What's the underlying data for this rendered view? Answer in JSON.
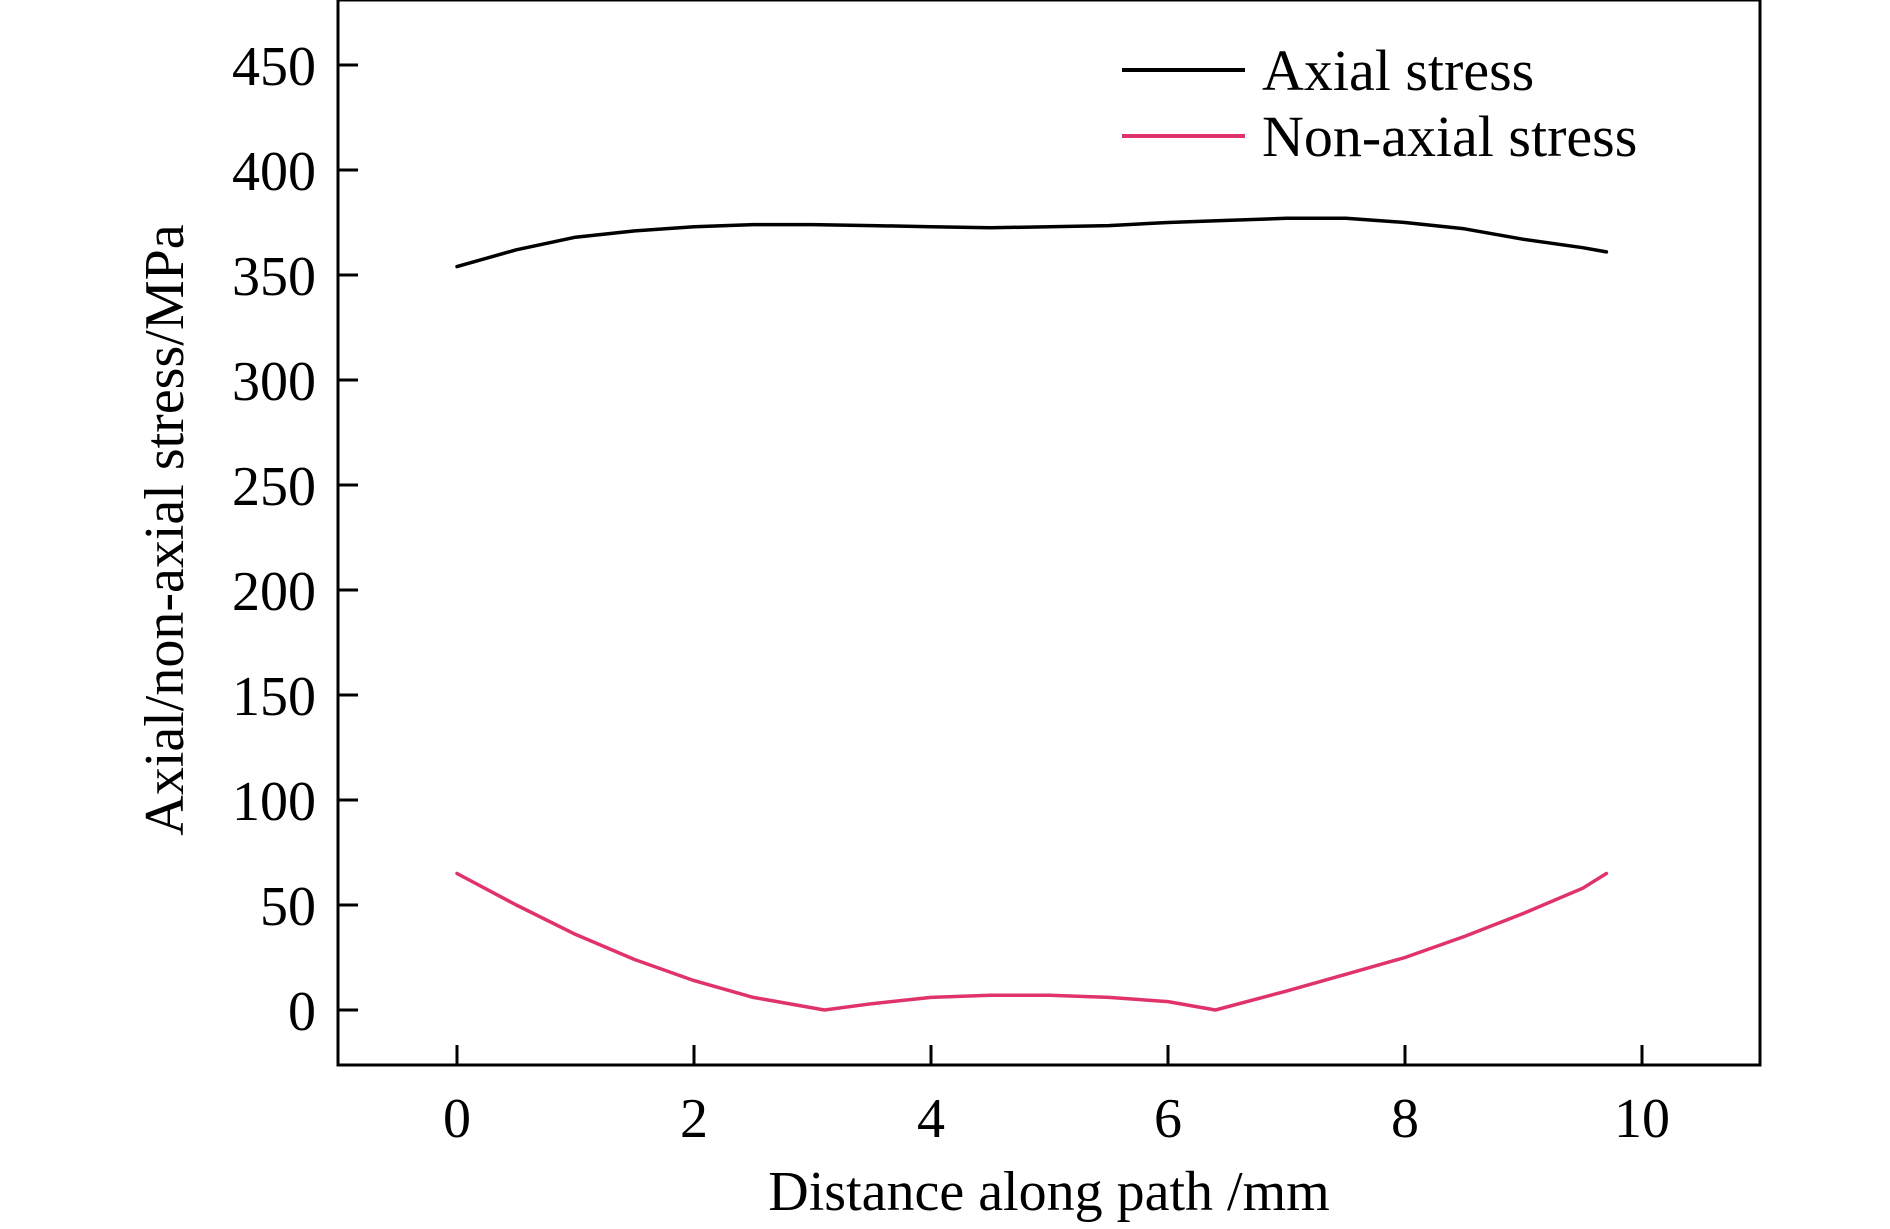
{
  "chart_data": {
    "type": "line",
    "title": "",
    "xlabel": "Distance along path /mm",
    "ylabel": "Axial/non-axial stress/MPa",
    "xlim": [
      -1,
      11
    ],
    "ylim": [
      -25,
      480
    ],
    "xticks": [
      0,
      2,
      4,
      6,
      8,
      10
    ],
    "yticks": [
      0,
      50,
      100,
      150,
      200,
      250,
      300,
      350,
      400,
      450
    ],
    "grid": false,
    "legend_position": "top-right",
    "series": [
      {
        "name": "Axial stress",
        "color": "#000000",
        "x": [
          0,
          0.5,
          1.0,
          1.5,
          2.0,
          2.5,
          3.0,
          3.5,
          4.0,
          4.5,
          5.0,
          5.5,
          6.0,
          6.5,
          7.0,
          7.5,
          8.0,
          8.5,
          9.0,
          9.5,
          9.7
        ],
        "y": [
          354,
          362,
          368,
          371,
          373,
          374,
          374,
          373.5,
          373,
          372.5,
          373,
          373.5,
          375,
          376,
          377,
          377,
          375,
          372,
          367,
          363,
          361
        ]
      },
      {
        "name": "Non-axial stress",
        "color": "#e0336a",
        "x": [
          0,
          0.5,
          1.0,
          1.5,
          2.0,
          2.5,
          3.0,
          3.1,
          3.5,
          4.0,
          4.5,
          5.0,
          5.5,
          6.0,
          6.4,
          7.0,
          7.5,
          8.0,
          8.5,
          9.0,
          9.5,
          9.7
        ],
        "y": [
          65,
          50,
          36,
          24,
          14,
          6,
          1,
          0,
          3,
          6,
          7,
          7,
          6,
          4,
          0,
          9,
          17,
          25,
          35,
          46,
          58,
          65
        ]
      }
    ]
  }
}
